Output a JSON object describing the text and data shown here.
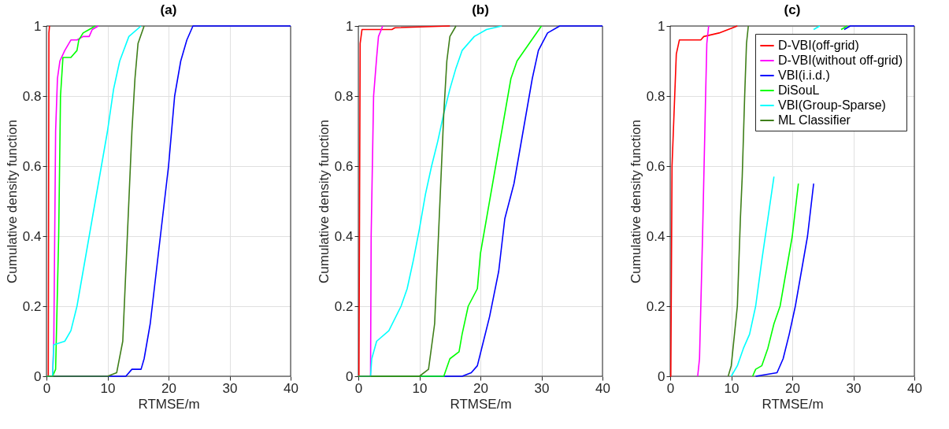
{
  "chart_data": [
    {
      "type": "line",
      "title": "(a)",
      "xlabel": "RTMSE/m",
      "ylabel": "Cumulative density function",
      "xlim": [
        0,
        40
      ],
      "ylim": [
        0,
        1
      ],
      "xticks": [
        0,
        10,
        20,
        30,
        40
      ],
      "yticks": [
        0,
        0.2,
        0.4,
        0.6,
        0.8,
        1
      ],
      "grid": true,
      "legend": false,
      "series": [
        {
          "color": "#ff0000",
          "x": [
            0,
            0.3,
            0.4,
            0.5
          ],
          "values": [
            0,
            0,
            0.98,
            1
          ]
        },
        {
          "color": "#ff00ff",
          "x": [
            0,
            1,
            1.2,
            1.5,
            1.8,
            2.2,
            3,
            4,
            5,
            6,
            7,
            7.5,
            8.5
          ],
          "values": [
            0,
            0,
            0.1,
            0.7,
            0.85,
            0.9,
            0.93,
            0.96,
            0.96,
            0.97,
            0.97,
            0.99,
            1
          ]
        },
        {
          "color": "#0000ff",
          "x": [
            0,
            13,
            14,
            15.5,
            16,
            17,
            18,
            19,
            20,
            21,
            22,
            23,
            24,
            40
          ],
          "values": [
            0,
            0,
            0.02,
            0.02,
            0.05,
            0.15,
            0.3,
            0.45,
            0.6,
            0.8,
            0.9,
            0.96,
            1,
            1
          ]
        },
        {
          "color": "#00ff00",
          "x": [
            0,
            1,
            1.5,
            2,
            2.3,
            2.7,
            4,
            5,
            5.3,
            6,
            7,
            8
          ],
          "values": [
            0,
            0,
            0.02,
            0.4,
            0.8,
            0.91,
            0.91,
            0.93,
            0.96,
            0.98,
            0.99,
            1
          ]
        },
        {
          "color": "#00ffff",
          "x": [
            0,
            1,
            1.2,
            3,
            4,
            5,
            6,
            7,
            8,
            9,
            10,
            11,
            12,
            13.5,
            15.5
          ],
          "values": [
            0,
            0,
            0.09,
            0.1,
            0.13,
            0.2,
            0.3,
            0.4,
            0.5,
            0.6,
            0.7,
            0.82,
            0.9,
            0.97,
            1
          ]
        },
        {
          "color": "#3f7f1a",
          "x": [
            0,
            10,
            11.5,
            12.5,
            13,
            13.5,
            14,
            14.5,
            15,
            16
          ],
          "values": [
            0,
            0,
            0.01,
            0.1,
            0.3,
            0.5,
            0.7,
            0.85,
            0.95,
            1
          ]
        }
      ]
    },
    {
      "type": "line",
      "title": "(b)",
      "xlabel": "RTMSE/m",
      "ylabel": "Cumulative density function",
      "xlim": [
        0,
        40
      ],
      "ylim": [
        0,
        1
      ],
      "xticks": [
        0,
        10,
        20,
        30,
        40
      ],
      "yticks": [
        0,
        0.2,
        0.4,
        0.6,
        0.8,
        1
      ],
      "grid": true,
      "legend": false,
      "series": [
        {
          "color": "#ff0000",
          "x": [
            0,
            0.1,
            0.3,
            0.6,
            5.5,
            6,
            15
          ],
          "values": [
            0,
            0,
            0.95,
            0.99,
            0.99,
            0.995,
            1
          ]
        },
        {
          "color": "#ff00ff",
          "x": [
            0,
            2,
            2.1,
            2.5,
            3,
            3.3,
            4
          ],
          "values": [
            0,
            0,
            0.4,
            0.8,
            0.91,
            0.97,
            1
          ]
        },
        {
          "color": "#0000ff",
          "x": [
            0,
            17,
            18.5,
            19.5,
            20.5,
            21.5,
            23,
            24,
            25.5,
            26.5,
            27.5,
            28.5,
            29.5,
            31,
            33,
            40
          ],
          "values": [
            0,
            0,
            0.01,
            0.03,
            0.1,
            0.17,
            0.3,
            0.45,
            0.55,
            0.65,
            0.75,
            0.85,
            0.93,
            0.98,
            1,
            1
          ]
        },
        {
          "color": "#00ff00",
          "x": [
            0,
            14,
            15,
            16.5,
            17,
            18,
            19.5,
            20,
            21,
            22,
            23,
            24,
            25,
            26,
            28,
            30
          ],
          "values": [
            0,
            0,
            0.05,
            0.07,
            0.12,
            0.2,
            0.25,
            0.35,
            0.45,
            0.55,
            0.65,
            0.75,
            0.85,
            0.9,
            0.95,
            1
          ]
        },
        {
          "color": "#00ffff",
          "x": [
            0,
            2,
            2.2,
            3,
            5,
            7,
            8,
            9,
            10,
            11,
            12,
            13,
            14,
            15,
            16,
            17,
            19,
            21,
            23.5
          ],
          "values": [
            0,
            0,
            0.05,
            0.1,
            0.13,
            0.2,
            0.25,
            0.33,
            0.42,
            0.52,
            0.6,
            0.67,
            0.75,
            0.82,
            0.88,
            0.93,
            0.97,
            0.99,
            1
          ]
        },
        {
          "color": "#3f7f1a",
          "x": [
            0,
            10,
            11.5,
            12.5,
            13,
            13.5,
            14,
            14.5,
            15,
            16
          ],
          "values": [
            0,
            0,
            0.02,
            0.15,
            0.35,
            0.55,
            0.75,
            0.9,
            0.97,
            1
          ]
        }
      ]
    },
    {
      "type": "line",
      "title": "(c)",
      "xlabel": "RTMSE/m",
      "ylabel": "Cumulative density function",
      "xlim": [
        0,
        40
      ],
      "ylim": [
        0,
        1
      ],
      "xticks": [
        0,
        10,
        20,
        30,
        40
      ],
      "yticks": [
        0,
        0.2,
        0.4,
        0.6,
        0.8,
        1
      ],
      "grid": true,
      "legend": "top right",
      "series": [
        {
          "name": "D-VBI(off-grid)",
          "color": "#ff0000",
          "x": [
            0,
            0.1,
            0.3,
            1,
            1.5,
            5,
            5.5,
            8,
            9.5,
            11
          ],
          "values": [
            0,
            0,
            0.6,
            0.92,
            0.96,
            0.96,
            0.97,
            0.98,
            0.99,
            1
          ]
        },
        {
          "name": "D-VBI(without off-grid)",
          "color": "#ff00ff",
          "x": [
            4.5,
            4.8,
            5.3,
            5.8,
            6,
            6.3
          ],
          "values": [
            0,
            0.05,
            0.4,
            0.8,
            0.95,
            1
          ]
        },
        {
          "name": "VBI(i.i.d.)",
          "color": "#0000ff",
          "x": [
            14,
            17.5,
            18.5,
            19.5,
            20.5,
            21.5,
            22.5,
            23.5,
            26,
            28.5,
            29.5,
            40
          ],
          "values": [
            0,
            0.01,
            0.05,
            0.12,
            0.2,
            0.3,
            0.4,
            0.55,
            null,
            0.99,
            1,
            1
          ]
        },
        {
          "name": "DiSouL",
          "color": "#00ff00",
          "x": [
            13.5,
            14,
            15,
            16,
            17,
            18,
            19,
            20,
            21,
            25,
            28,
            29
          ],
          "values": [
            0,
            0.02,
            0.03,
            0.08,
            0.15,
            0.2,
            0.3,
            0.4,
            0.55,
            null,
            0.99,
            1
          ]
        },
        {
          "name": "VBI(Group-Sparse)",
          "color": "#00ffff",
          "x": [
            10,
            11,
            12,
            13,
            14,
            15,
            16,
            17,
            20,
            23.5,
            24.5
          ],
          "values": [
            0,
            0.03,
            0.08,
            0.12,
            0.2,
            0.33,
            0.45,
            0.57,
            null,
            0.99,
            1
          ]
        },
        {
          "name": "ML Classifier",
          "color": "#3f7f1a",
          "x": [
            9.5,
            10,
            11,
            11.5,
            11.8,
            12.2,
            12.5,
            12.8
          ],
          "values": [
            0,
            0.03,
            0.2,
            0.45,
            0.57,
            0.8,
            0.95,
            1
          ]
        }
      ]
    }
  ]
}
